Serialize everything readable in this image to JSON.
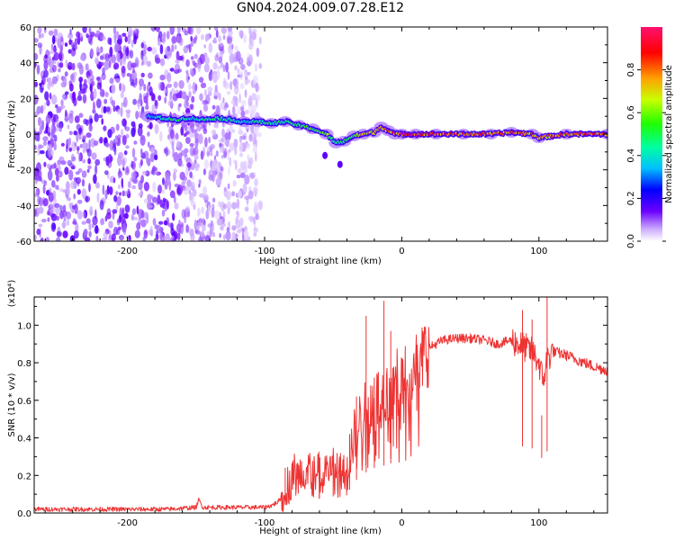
{
  "title": "GN04.2024.009.07.28.E12",
  "chart_data": [
    {
      "id": "spectrogram",
      "type": "heatmap",
      "xlabel": "Height of straight line (km)",
      "ylabel": "Frequency (Hz)",
      "xlim": [
        -268,
        150
      ],
      "ylim": [
        -60,
        60
      ],
      "x_ticks": [
        -200,
        -100,
        0,
        100
      ],
      "x_tick_labels": [
        "-200",
        "-100",
        "0",
        "100"
      ],
      "y_ticks": [
        -60,
        -40,
        -20,
        0,
        20,
        40,
        60
      ],
      "y_tick_labels": [
        "-60",
        "-40",
        "-20",
        "0",
        "20",
        "40",
        "60"
      ],
      "colorbar": {
        "label": "Normalized spectral amplitude",
        "range": [
          0,
          1
        ],
        "ticks": [
          0,
          0.2,
          0.4,
          0.6,
          0.8
        ],
        "tick_labels": [
          "0.0",
          "0.2",
          "0.4",
          "0.6",
          "0.8"
        ]
      },
      "noise_region_x": [
        -268,
        -103
      ],
      "ridge": [
        {
          "x": -185,
          "y": 10,
          "v": 0.35
        },
        {
          "x": -175,
          "y": 9,
          "v": 0.45
        },
        {
          "x": -165,
          "y": 8,
          "v": 0.5
        },
        {
          "x": -155,
          "y": 9,
          "v": 0.4
        },
        {
          "x": -145,
          "y": 8,
          "v": 0.45
        },
        {
          "x": -135,
          "y": 9,
          "v": 0.5
        },
        {
          "x": -125,
          "y": 8,
          "v": 0.45
        },
        {
          "x": -115,
          "y": 7,
          "v": 0.4
        },
        {
          "x": -105,
          "y": 7,
          "v": 0.45
        },
        {
          "x": -95,
          "y": 6,
          "v": 0.5
        },
        {
          "x": -85,
          "y": 7,
          "v": 0.45
        },
        {
          "x": -75,
          "y": 5,
          "v": 0.55
        },
        {
          "x": -65,
          "y": 3,
          "v": 0.55
        },
        {
          "x": -55,
          "y": 0,
          "v": 0.6
        },
        {
          "x": -48,
          "y": -5,
          "v": 0.45
        },
        {
          "x": -42,
          "y": -4,
          "v": 0.5
        },
        {
          "x": -35,
          "y": -1,
          "v": 0.6
        },
        {
          "x": -28,
          "y": 0,
          "v": 0.8
        },
        {
          "x": -20,
          "y": 1,
          "v": 0.7
        },
        {
          "x": -15,
          "y": 4,
          "v": 0.75
        },
        {
          "x": -10,
          "y": 2,
          "v": 0.8
        },
        {
          "x": -5,
          "y": 0,
          "v": 0.85
        },
        {
          "x": 0,
          "y": 0,
          "v": 0.9
        },
        {
          "x": 10,
          "y": 0,
          "v": 0.9
        },
        {
          "x": 25,
          "y": 0,
          "v": 0.85
        },
        {
          "x": 45,
          "y": 0,
          "v": 0.85
        },
        {
          "x": 65,
          "y": 0,
          "v": 0.85
        },
        {
          "x": 80,
          "y": 1,
          "v": 0.8
        },
        {
          "x": 95,
          "y": 0,
          "v": 0.8
        },
        {
          "x": 100,
          "y": -2,
          "v": 0.75
        },
        {
          "x": 120,
          "y": 0,
          "v": 0.85
        },
        {
          "x": 150,
          "y": 0,
          "v": 0.85
        }
      ],
      "scatter_blobs": [
        {
          "x": -45,
          "y": -17
        },
        {
          "x": -56,
          "y": -12
        }
      ]
    },
    {
      "id": "snr",
      "type": "line",
      "xlabel": "Height of straight line (km)",
      "ylabel": "SNR (10 * v/v)",
      "y_scale_label": "(x10⁴)",
      "color": "#ee3333",
      "xlim": [
        -268,
        150
      ],
      "ylim": [
        0,
        1.15
      ],
      "x_ticks": [
        -200,
        -100,
        0,
        100
      ],
      "x_tick_labels": [
        "-200",
        "-100",
        "0",
        "100"
      ],
      "y_ticks": [
        0,
        0.2,
        0.4,
        0.6,
        0.8,
        1.0
      ],
      "y_tick_labels": [
        "0.0",
        "0.2",
        "0.4",
        "0.6",
        "0.8",
        "1.0"
      ],
      "series": [
        {
          "x": [
            -268,
            -240,
            -200,
            -170,
            -150,
            -148,
            -145,
            -130,
            -110,
            -100,
            -95,
            -90,
            -85,
            -82,
            -80,
            -75,
            -70,
            -65,
            -60,
            -55,
            -50,
            -45,
            -40,
            -35,
            -30,
            -25,
            -20,
            -15,
            -10,
            -5,
            0,
            5,
            10,
            20,
            30,
            40,
            50,
            60,
            70,
            80,
            85,
            90,
            95,
            100,
            103,
            106,
            110,
            120,
            130,
            140,
            150
          ],
          "y": [
            0.02,
            0.02,
            0.02,
            0.02,
            0.03,
            0.07,
            0.03,
            0.03,
            0.03,
            0.03,
            0.04,
            0.06,
            0.12,
            0.16,
            0.22,
            0.18,
            0.25,
            0.22,
            0.2,
            0.25,
            0.22,
            0.2,
            0.25,
            0.4,
            0.5,
            0.55,
            0.6,
            0.62,
            0.65,
            0.68,
            0.72,
            0.76,
            0.8,
            0.88,
            0.92,
            0.93,
            0.93,
            0.92,
            0.9,
            0.92,
            0.9,
            0.88,
            0.86,
            0.8,
            0.7,
            0.82,
            0.86,
            0.84,
            0.81,
            0.78,
            0.76
          ]
        }
      ],
      "spikes": [
        {
          "x": -85,
          "y": 0.24
        },
        {
          "x": -60,
          "y": 0.26
        },
        {
          "x": -50,
          "y": 0.27
        },
        {
          "x": -38,
          "y": 0.42
        },
        {
          "x": -33,
          "y": 0.62
        },
        {
          "x": -26,
          "y": 1.05
        },
        {
          "x": -20,
          "y": 0.72
        },
        {
          "x": -13,
          "y": 1.13
        },
        {
          "x": -8,
          "y": 0.97
        },
        {
          "x": 88,
          "y": 1.08
        },
        {
          "x": 95,
          "y": 1.03
        },
        {
          "x": 102,
          "y": 0.52
        },
        {
          "x": 106,
          "y": 1.16
        }
      ]
    }
  ]
}
